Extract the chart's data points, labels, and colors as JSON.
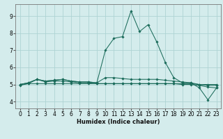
{
  "bg_color": "#d4ecec",
  "grid_color": "#aed4d4",
  "line_color": "#1a6b5a",
  "xlabel": "Humidex (Indice chaleur)",
  "xlim": [
    -0.5,
    23.5
  ],
  "ylim": [
    3.6,
    9.7
  ],
  "xticks": [
    0,
    1,
    2,
    3,
    4,
    5,
    6,
    7,
    8,
    9,
    10,
    11,
    12,
    13,
    14,
    15,
    16,
    17,
    18,
    19,
    20,
    21,
    22,
    23
  ],
  "yticks": [
    4,
    5,
    6,
    7,
    8,
    9
  ],
  "lines": [
    {
      "x": [
        0,
        1,
        2,
        3,
        4,
        5,
        6,
        7,
        8,
        9,
        10,
        11,
        12,
        13,
        14,
        15,
        16,
        17,
        18,
        19,
        20,
        21,
        22,
        23
      ],
      "y": [
        5.0,
        5.05,
        5.3,
        5.15,
        5.2,
        5.2,
        5.15,
        5.1,
        5.1,
        5.05,
        5.05,
        5.05,
        5.05,
        5.05,
        5.05,
        5.05,
        5.05,
        5.05,
        5.05,
        5.05,
        5.05,
        5.0,
        5.0,
        5.0
      ]
    },
    {
      "x": [
        0,
        1,
        2,
        3,
        4,
        5,
        6,
        7,
        8,
        9,
        10,
        11,
        12,
        13,
        14,
        15,
        16,
        17,
        18,
        19,
        20,
        21,
        22,
        23
      ],
      "y": [
        5.0,
        5.1,
        5.3,
        5.2,
        5.25,
        5.3,
        5.2,
        5.15,
        5.15,
        5.1,
        5.4,
        5.4,
        5.35,
        5.3,
        5.3,
        5.3,
        5.3,
        5.25,
        5.2,
        5.15,
        5.1,
        5.0,
        4.95,
        4.95
      ]
    },
    {
      "x": [
        0,
        1,
        2,
        3,
        4,
        5,
        6,
        7,
        8,
        9,
        10,
        11,
        12,
        13,
        14,
        15,
        16,
        17,
        18,
        19,
        20,
        21,
        22,
        23
      ],
      "y": [
        5.0,
        5.1,
        5.3,
        5.2,
        5.25,
        5.3,
        5.2,
        5.15,
        5.15,
        5.1,
        7.0,
        7.7,
        7.8,
        9.3,
        8.1,
        8.5,
        7.5,
        6.3,
        5.4,
        5.1,
        5.1,
        4.8,
        4.1,
        4.8
      ]
    },
    {
      "x": [
        0,
        1,
        2,
        3,
        4,
        5,
        6,
        7,
        8,
        9,
        10,
        11,
        12,
        13,
        14,
        15,
        16,
        17,
        18,
        19,
        20,
        21,
        22,
        23
      ],
      "y": [
        4.95,
        5.05,
        5.05,
        5.05,
        5.05,
        5.05,
        5.05,
        5.05,
        5.05,
        5.05,
        5.05,
        5.05,
        5.05,
        5.05,
        5.05,
        5.05,
        5.05,
        5.05,
        5.05,
        5.0,
        5.0,
        4.95,
        4.85,
        4.8
      ]
    }
  ],
  "tick_fontsize": 5.5,
  "xlabel_fontsize": 6.0
}
